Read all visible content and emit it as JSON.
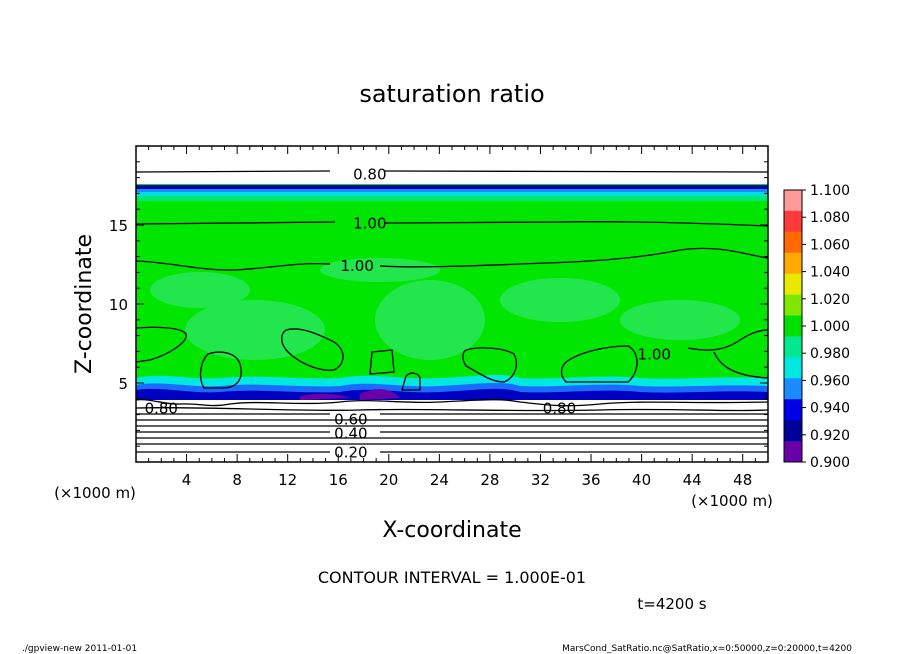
{
  "chart_data": {
    "type": "heatmap",
    "title": "saturation ratio",
    "xlabel": "X-coordinate",
    "ylabel": "Z-coordinate",
    "x_unit": "(×1000 m)",
    "y_unit": "(×1000 m)",
    "xlim": [
      0,
      50
    ],
    "ylim": [
      0,
      20
    ],
    "x_ticks": [
      4,
      8,
      12,
      16,
      20,
      24,
      28,
      32,
      36,
      40,
      44,
      48
    ],
    "y_ticks": [
      5,
      10,
      15
    ],
    "colorbar": {
      "levels": [
        "1.100",
        "1.080",
        "1.060",
        "1.040",
        "1.020",
        "1.000",
        "0.980",
        "0.960",
        "0.940",
        "0.920",
        "0.900"
      ],
      "colors": [
        "#ff9a9a",
        "#ff3a3a",
        "#ff6a00",
        "#ffaa00",
        "#e8e800",
        "#7fe800",
        "#00e000",
        "#00e890",
        "#00e8e0",
        "#1a8cff",
        "#0000e8",
        "#00009a",
        "#6a00a8"
      ]
    },
    "contour_labels": [
      {
        "text": "0.80",
        "x": 18.5,
        "y": 18.2
      },
      {
        "text": "1.00",
        "x": 18.5,
        "y": 15.1
      },
      {
        "text": "1.00",
        "x": 17.5,
        "y": 12.4
      },
      {
        "text": "1.00",
        "x": 41.0,
        "y": 6.8
      },
      {
        "text": "0.80",
        "x": 2.0,
        "y": 3.4
      },
      {
        "text": "0.80",
        "x": 33.5,
        "y": 3.4
      },
      {
        "text": "0.60",
        "x": 17.0,
        "y": 2.7
      },
      {
        "text": "0.40",
        "x": 17.0,
        "y": 1.8
      },
      {
        "text": "0.20",
        "x": 17.0,
        "y": 0.6
      }
    ],
    "interval_note": "CONTOUR INTERVAL = 1.000E-01",
    "time_label": "t=4200 s"
  },
  "footer": {
    "left": "./gpview-new  2011-01-01",
    "right": "MarsCond_SatRatio.nc@SatRatio,x=0:50000,z=0:20000,t=4200"
  }
}
